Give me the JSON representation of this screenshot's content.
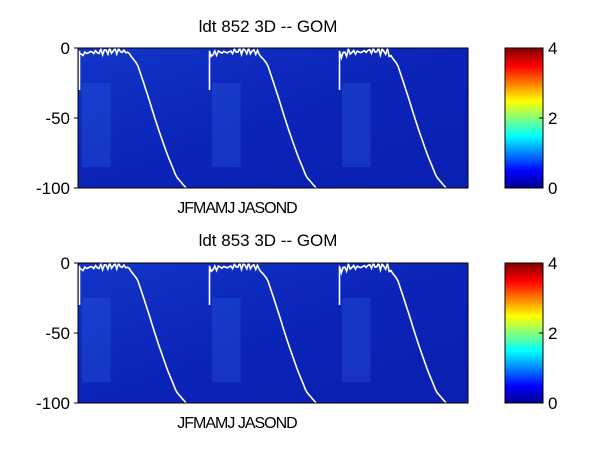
{
  "chart_data": [
    {
      "type": "heatmap",
      "title": "ldt   852 3D    -- GOM",
      "x_tick_label": "JFMAMJ JASOND",
      "ylim": [
        -100,
        0
      ],
      "y_ticks": [
        "0",
        "-50",
        "-100"
      ],
      "colorbar": {
        "range": [
          0,
          4
        ],
        "ticks": [
          "0",
          "2",
          "4"
        ]
      },
      "colormap": [
        "#00008f",
        "#0000ff",
        "#00ffff",
        "#ffff00",
        "#ff0000",
        "#800000"
      ],
      "background_value_color": "#0a1fb4",
      "line_color": "#ffffff",
      "annual_cycles": 3,
      "line_depth_by_month": [
        -5,
        -3,
        -3,
        -2,
        -2,
        -3,
        -12,
        -33,
        -55,
        -75,
        -92,
        -100
      ]
    },
    {
      "type": "heatmap",
      "title": "ldt   853 3D    -- GOM",
      "x_tick_label": "JFMAMJ JASOND",
      "ylim": [
        -100,
        0
      ],
      "y_ticks": [
        "0",
        "-50",
        "-100"
      ],
      "colorbar": {
        "range": [
          0,
          4
        ],
        "ticks": [
          "0",
          "2",
          "4"
        ]
      },
      "colormap": [
        "#00008f",
        "#0000ff",
        "#00ffff",
        "#ffff00",
        "#ff0000",
        "#800000"
      ],
      "background_value_color": "#0a1fb4",
      "line_color": "#ffffff",
      "annual_cycles": 3,
      "line_depth_by_month": [
        -5,
        -3,
        -3,
        -2,
        -2,
        -3,
        -12,
        -33,
        -55,
        -75,
        -92,
        -100
      ]
    }
  ]
}
